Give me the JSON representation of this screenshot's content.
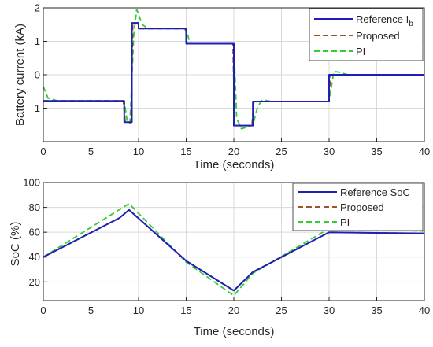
{
  "chart_data": [
    {
      "type": "line",
      "xlabel": "Time (seconds)",
      "ylabel": "Battery current (kA)",
      "ylabel_main": "Battery current",
      "ylabel_unit": " (kA)",
      "xlim": [
        0,
        40
      ],
      "ylim": [
        -2,
        2
      ],
      "xticks": [
        0,
        5,
        10,
        15,
        20,
        25,
        30,
        35,
        40
      ],
      "yticks": [
        -1,
        0,
        1,
        2
      ],
      "grid": true,
      "legend_position": "top-right",
      "series": [
        {
          "name": "Reference I_b",
          "name_main": "Reference I",
          "name_sub": "b",
          "color": "#1f1fb4",
          "style": "solid",
          "x": [
            0,
            8.5,
            8.5,
            9.3,
            9.3,
            10,
            10,
            15,
            15,
            20,
            20,
            22,
            22,
            30,
            30,
            40
          ],
          "y": [
            -0.78,
            -0.78,
            -1.42,
            -1.42,
            1.55,
            1.55,
            1.38,
            1.38,
            0.93,
            0.93,
            -1.52,
            -1.52,
            -0.8,
            -0.8,
            0.0,
            0.0
          ]
        },
        {
          "name": "Proposed",
          "color": "#a0522d",
          "style": "dashed",
          "x": [
            0,
            8.4,
            8.6,
            9.2,
            9.4,
            9.9,
            10.1,
            14.9,
            15.1,
            19.9,
            20.1,
            21.9,
            22.1,
            29.9,
            30.2,
            40
          ],
          "y": [
            -0.78,
            -0.78,
            -1.42,
            -1.42,
            1.55,
            1.55,
            1.38,
            1.38,
            0.93,
            0.93,
            -1.52,
            -1.52,
            -0.8,
            -0.8,
            0.0,
            0.0
          ]
        },
        {
          "name": "PI",
          "color": "#33cc33",
          "style": "dashed",
          "x": [
            0,
            0.5,
            1.5,
            8.5,
            8.8,
            9.1,
            9.5,
            9.8,
            10.4,
            11,
            15,
            15.4,
            20,
            20.3,
            20.8,
            21.5,
            22,
            22.5,
            23,
            24,
            30,
            30.5,
            31,
            32,
            40
          ],
          "y": [
            -0.35,
            -0.7,
            -0.78,
            -0.78,
            -1.38,
            -1.45,
            1.2,
            1.95,
            1.5,
            1.38,
            1.38,
            0.93,
            0.93,
            -1.3,
            -1.62,
            -1.55,
            -1.5,
            -0.95,
            -0.75,
            -0.8,
            -0.8,
            0.1,
            0.08,
            0.0,
            0.0
          ]
        }
      ]
    },
    {
      "type": "line",
      "xlabel": "Time (seconds)",
      "ylabel": "SoC (%)",
      "xlim": [
        0,
        40
      ],
      "ylim": [
        5,
        100
      ],
      "xticks": [
        0,
        5,
        10,
        15,
        20,
        25,
        30,
        35,
        40
      ],
      "yticks": [
        20,
        40,
        60,
        80,
        100
      ],
      "grid": true,
      "legend_position": "top-right",
      "series": [
        {
          "name": "Reference SoC",
          "color": "#1f1fb4",
          "style": "solid",
          "x": [
            0,
            8,
            9,
            15,
            20,
            22,
            30,
            40
          ],
          "y": [
            40,
            71.5,
            78,
            37,
            13,
            28,
            60,
            59
          ]
        },
        {
          "name": "Proposed",
          "color": "#a0522d",
          "style": "dashed",
          "x": [
            0,
            8,
            9,
            15,
            20,
            22,
            30,
            40
          ],
          "y": [
            40,
            71.5,
            78,
            37,
            13,
            28,
            60,
            59
          ]
        },
        {
          "name": "PI",
          "color": "#33cc33",
          "style": "dashed",
          "x": [
            0,
            9,
            15,
            20,
            22,
            30,
            40
          ],
          "y": [
            40,
            83,
            36,
            9,
            27,
            63,
            61
          ]
        }
      ]
    }
  ]
}
